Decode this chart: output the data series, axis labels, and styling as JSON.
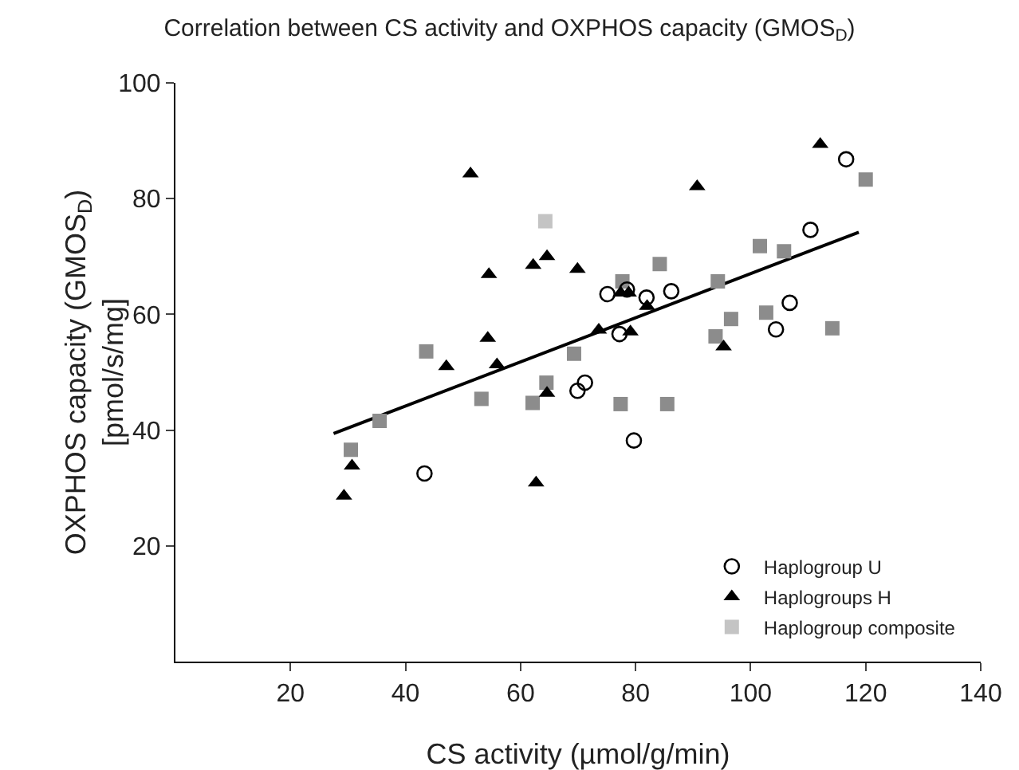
{
  "chart_data": {
    "type": "scatter",
    "title": "Correlation between CS activity and OXPHOS capacity (GMOS$_{D}$)",
    "xlabel": "CS activity (µmol/g/min)",
    "ylabel": "OXPHOS capacity (GMOS$_{D}$)\n[pmol/s/mg]",
    "xlim": [
      0,
      140
    ],
    "xticks": [
      20,
      40,
      60,
      80,
      100,
      120,
      140
    ],
    "ylim": [
      0,
      100
    ],
    "yticks": [
      20,
      40,
      60,
      80,
      100
    ],
    "grid": false,
    "legend": "bottom right",
    "series": [
      {
        "name": "Haplogroup U",
        "color": "#000000",
        "marker": "circle",
        "x": [
          43.3,
          69.9,
          71.2,
          116.6,
          110.4,
          75.1,
          78.5,
          81.9,
          86.2,
          77.2,
          106.8,
          104.4,
          79.7
        ],
        "values": [
          32.5,
          46.8,
          48.2,
          86.8,
          74.6,
          63.5,
          64.3,
          62.9,
          64.0,
          56.6,
          62.0,
          57.4,
          38.2
        ]
      },
      {
        "name": "Haplogroups H",
        "color": "#000000",
        "marker": "triangle",
        "x": [
          51.3,
          54.5,
          62.2,
          64.6,
          69.9,
          73.6,
          54.3,
          47.1,
          55.9,
          64.6,
          30.7,
          29.3,
          62.7,
          112.1,
          90.7,
          77.4,
          78.8,
          82.0,
          79.1,
          95.3
        ],
        "values": [
          84.3,
          66.9,
          68.5,
          70.0,
          67.8,
          57.3,
          55.9,
          51.0,
          51.3,
          46.4,
          33.8,
          28.6,
          30.9,
          89.4,
          82.1,
          63.7,
          63.7,
          61.4,
          57.0,
          54.4
        ]
      },
      {
        "name": "Haplogroup composite",
        "color": "#8c8c8c",
        "marker": "square",
        "x": [
          64.3,
          43.6,
          69.3,
          64.5,
          53.2,
          62.1,
          35.5,
          30.5,
          120.0,
          101.6,
          105.8,
          84.2,
          77.7,
          94.3,
          96.6,
          102.7,
          114.2,
          93.9,
          77.4,
          85.5
        ],
        "values": [
          76.1,
          53.6,
          53.2,
          48.2,
          45.4,
          44.7,
          41.6,
          36.6,
          83.3,
          71.8,
          70.9,
          68.7,
          65.7,
          65.7,
          59.2,
          60.3,
          57.6,
          56.2,
          44.5,
          44.5
        ],
        "colors": [
          "#c4c4c4",
          "#8c8c8c",
          "#8c8c8c",
          "#8c8c8c",
          "#8c8c8c",
          "#8c8c8c",
          "#8c8c8c",
          "#8c8c8c",
          "#8c8c8c",
          "#8c8c8c",
          "#8c8c8c",
          "#8c8c8c",
          "#8c8c8c",
          "#8c8c8c",
          "#8c8c8c",
          "#8c8c8c",
          "#8c8c8c",
          "#8c8c8c",
          "#8c8c8c",
          "#8c8c8c"
        ]
      },
      {
        "type": "line",
        "color": "#000000",
        "marker": "none",
        "line_style": "solid",
        "x": [
          27.5,
          118.8
        ],
        "values": [
          39.4,
          74.2
        ]
      }
    ]
  }
}
